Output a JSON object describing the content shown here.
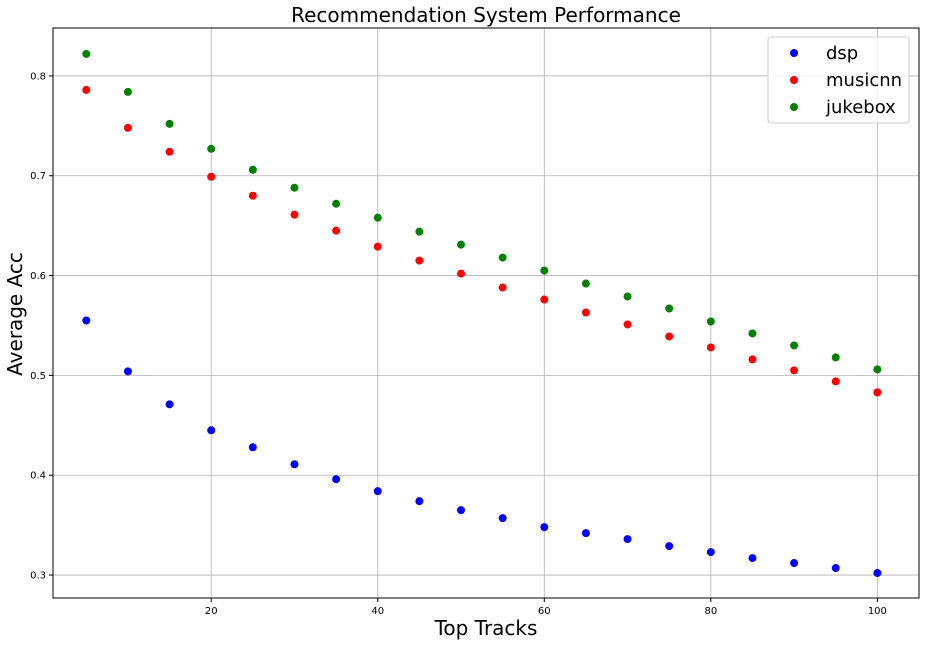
{
  "chart_data": {
    "type": "scatter",
    "title": "Recommendation System Performance",
    "xlabel": "Top Tracks",
    "ylabel": "Average Acc",
    "xlim": [
      1,
      105
    ],
    "ylim": [
      0.277,
      0.848
    ],
    "xticks": [
      20,
      40,
      60,
      80,
      100
    ],
    "yticks": [
      0.3,
      0.4,
      0.5,
      0.6,
      0.7,
      0.8
    ],
    "grid": true,
    "legend_position": "top-right",
    "x": [
      5,
      10,
      15,
      20,
      25,
      30,
      35,
      40,
      45,
      50,
      55,
      60,
      65,
      70,
      75,
      80,
      85,
      90,
      95,
      100
    ],
    "series": [
      {
        "name": "dsp",
        "color": "#0000ff",
        "values": [
          0.555,
          0.504,
          0.471,
          0.445,
          0.428,
          0.411,
          0.396,
          0.384,
          0.374,
          0.365,
          0.357,
          0.348,
          0.342,
          0.336,
          0.329,
          0.323,
          0.317,
          0.312,
          0.307,
          0.302
        ]
      },
      {
        "name": "musicnn",
        "color": "#ff0000",
        "values": [
          0.786,
          0.748,
          0.724,
          0.699,
          0.68,
          0.661,
          0.645,
          0.629,
          0.615,
          0.602,
          0.588,
          0.576,
          0.563,
          0.551,
          0.539,
          0.528,
          0.516,
          0.505,
          0.494,
          0.483
        ]
      },
      {
        "name": "jukebox",
        "color": "#008000",
        "values": [
          0.822,
          0.784,
          0.752,
          0.727,
          0.706,
          0.688,
          0.672,
          0.658,
          0.644,
          0.631,
          0.618,
          0.605,
          0.592,
          0.579,
          0.567,
          0.554,
          0.542,
          0.53,
          0.518,
          0.506
        ]
      }
    ]
  }
}
